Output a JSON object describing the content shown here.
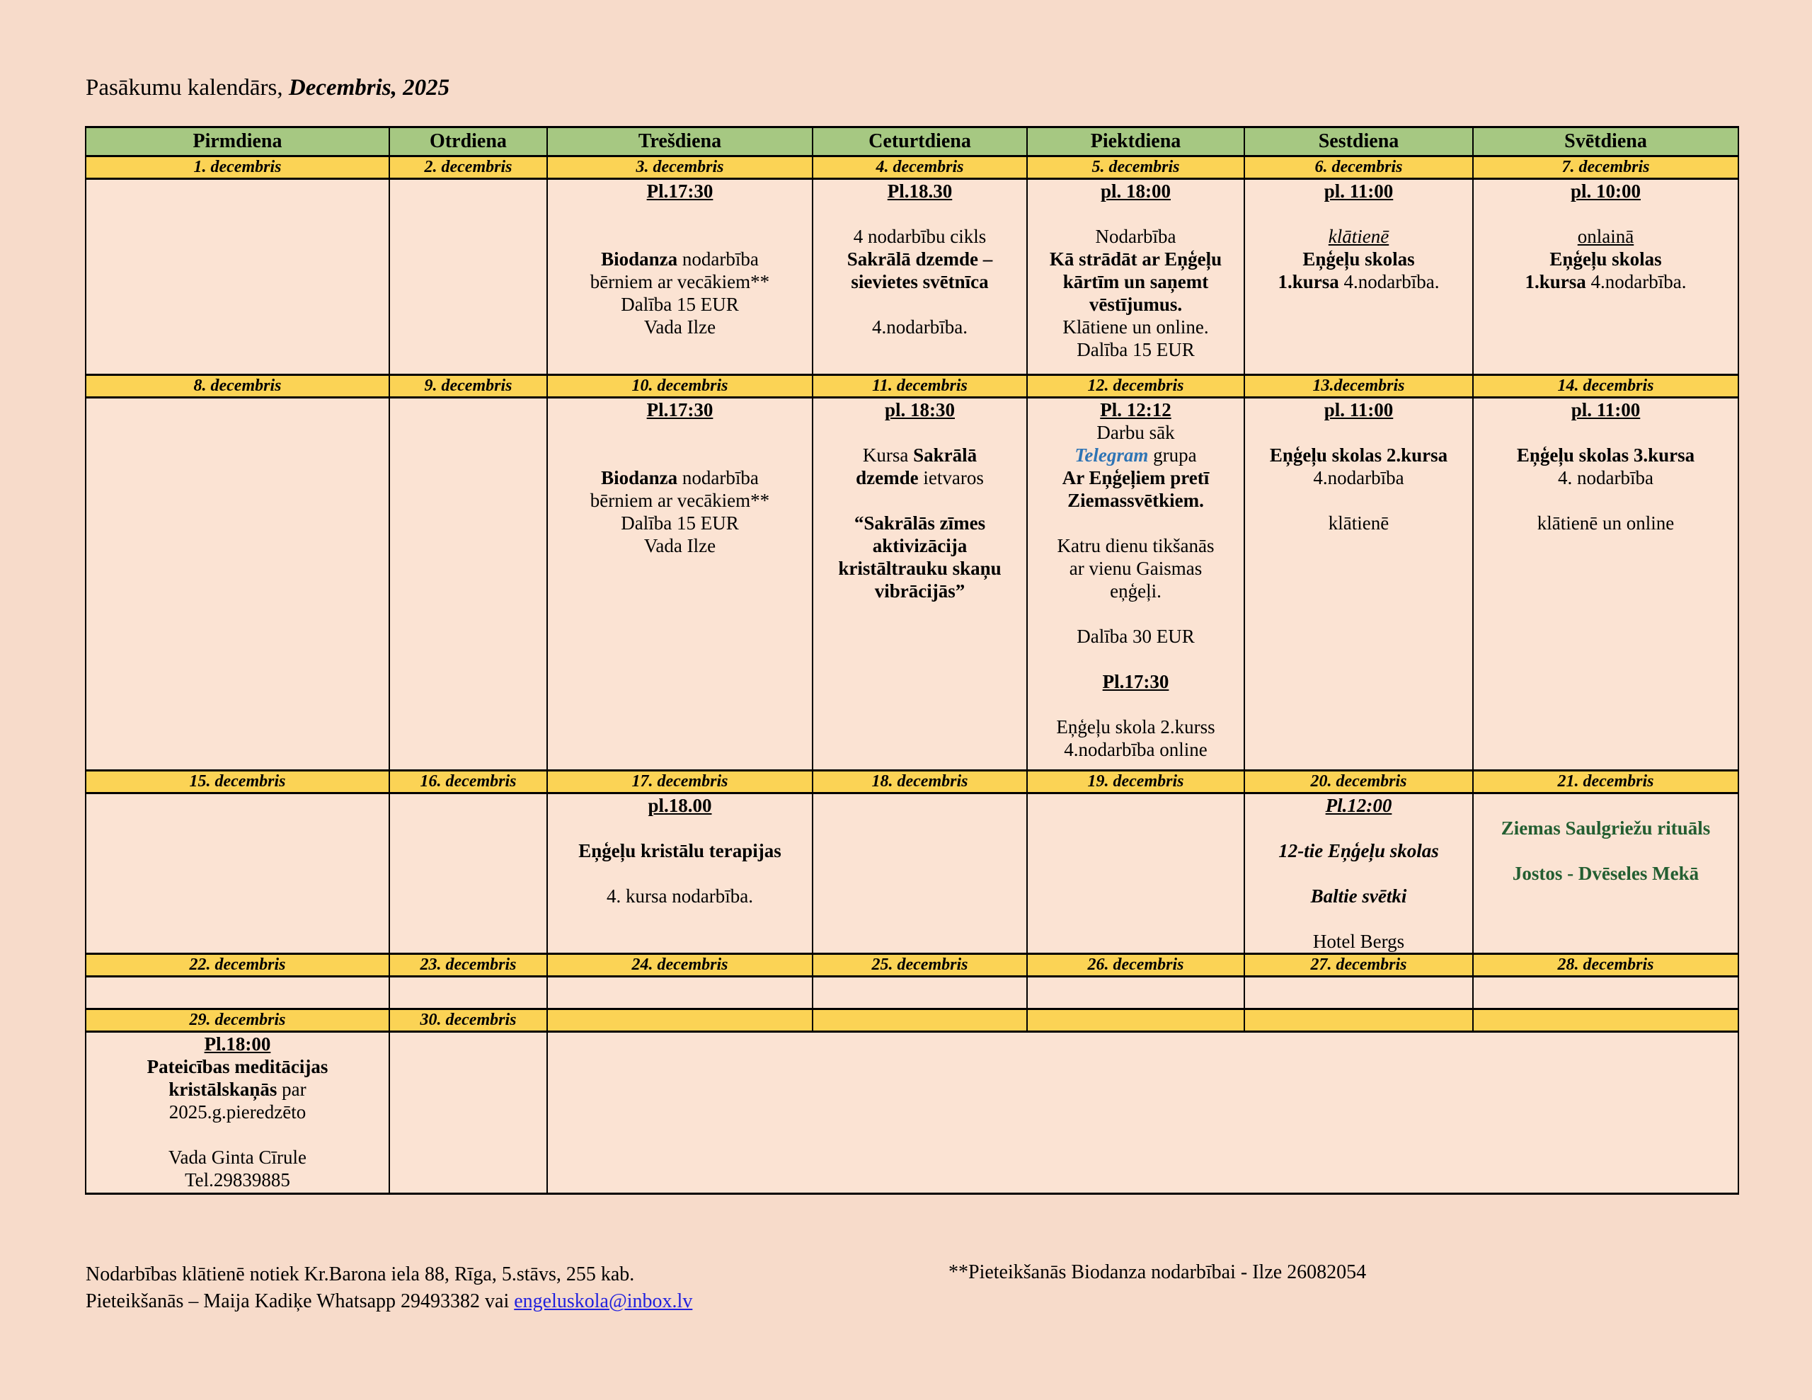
{
  "title": {
    "prefix": "Pasākumu kalendārs, ",
    "emphasis": "Decembris, 2025"
  },
  "colors": {
    "page_bg": "#f7dbca",
    "cell_bg": "#fbe3d3",
    "weekday_green": "#a6c882",
    "date_yellow": "#fbd355",
    "event_green_text": "#235e31",
    "telegram_blue": "#2e74b5",
    "link_blue": "#2121dd",
    "border": "#000000"
  },
  "weekdays": [
    "Pirmdiena",
    "Otrdiena",
    "Trešdiena",
    "Ceturtdiena",
    "Piektdiena",
    "Sestdiena",
    "Svētdiena"
  ],
  "weeks": [
    {
      "dates": [
        "1. decembris",
        "2. decembris",
        "3. decembris",
        "4. decembris",
        "5. decembris",
        "6. decembris",
        "7. decembris"
      ],
      "cells": [
        [],
        [],
        [
          [
            [
              "Pl.17:30",
              "bu"
            ]
          ],
          [],
          [],
          [
            [
              "Biodanza",
              "b"
            ],
            [
              " nodarbība",
              ""
            ]
          ],
          [
            [
              "bērniem ar vecākiem**",
              ""
            ]
          ],
          [
            [
              "Dalība 15 EUR",
              ""
            ]
          ],
          [
            [
              "Vada Ilze",
              ""
            ]
          ]
        ],
        [
          [
            [
              "Pl.18.30",
              "bu"
            ]
          ],
          [],
          [
            [
              "4 nodarbību cikls",
              ""
            ]
          ],
          [
            [
              "Sakrālā dzemde –",
              "b"
            ]
          ],
          [
            [
              "sievietes svētnīca",
              "b"
            ]
          ],
          [],
          [
            [
              "4.nodarbība.",
              ""
            ]
          ]
        ],
        [
          [
            [
              "pl. 18:00",
              "bu"
            ]
          ],
          [],
          [
            [
              "Nodarbība",
              ""
            ]
          ],
          [
            [
              "Kā strādāt ar Eņģeļu",
              "b"
            ]
          ],
          [
            [
              "kārtīm un saņemt",
              "b"
            ]
          ],
          [
            [
              "vēstījumus.",
              "b"
            ]
          ],
          [
            [
              "Klātiene un online.",
              ""
            ]
          ],
          [
            [
              "Dalība 15 EUR",
              ""
            ]
          ]
        ],
        [
          [
            [
              "pl. 11:00",
              "bu"
            ]
          ],
          [],
          [
            [
              "klātienē",
              "iu"
            ]
          ],
          [
            [
              "Eņģeļu skolas",
              "b"
            ]
          ],
          [
            [
              "1.kursa",
              "b"
            ],
            [
              " 4.nodarbība.",
              ""
            ]
          ]
        ],
        [
          [
            [
              "pl. 10:00",
              "bu"
            ]
          ],
          [],
          [
            [
              "onlainā",
              "u"
            ]
          ],
          [
            [
              "Eņģeļu skolas",
              "b"
            ]
          ],
          [
            [
              "1.kursa",
              "b"
            ],
            [
              " 4.nodarbība.",
              ""
            ]
          ]
        ]
      ]
    },
    {
      "dates": [
        "8. decembris",
        "9. decembris",
        "10. decembris",
        "11. decembris",
        "12. decembris",
        "13.decembris",
        "14. decembris"
      ],
      "cells": [
        [],
        [],
        [
          [
            [
              "Pl.17:30",
              "bu"
            ]
          ],
          [],
          [],
          [
            [
              "Biodanza",
              "b"
            ],
            [
              " nodarbība",
              ""
            ]
          ],
          [
            [
              "bērniem ar vecākiem**",
              ""
            ]
          ],
          [
            [
              "Dalība 15 EUR",
              ""
            ]
          ],
          [
            [
              "Vada Ilze",
              ""
            ]
          ]
        ],
        [
          [
            [
              "pl. 18:30",
              "bu"
            ]
          ],
          [],
          [
            [
              "Kursa ",
              ""
            ],
            [
              "Sakrālā",
              "b"
            ]
          ],
          [
            [
              "dzemde",
              "b"
            ],
            [
              " ietvaros",
              ""
            ]
          ],
          [],
          [
            [
              "“Sakrālās zīmes",
              "b"
            ]
          ],
          [
            [
              "aktivizācija",
              "b"
            ]
          ],
          [
            [
              "kristāltrauku skaņu",
              "b"
            ]
          ],
          [
            [
              "vibrācijās”",
              "b"
            ]
          ]
        ],
        [
          [
            [
              "Pl. 12:12",
              "bu"
            ]
          ],
          [
            [
              "Darbu sāk",
              ""
            ]
          ],
          [
            [
              "Telegram",
              "bit"
            ],
            [
              " grupa",
              ""
            ]
          ],
          [
            [
              "Ar Eņģeļiem pretī",
              "b"
            ]
          ],
          [
            [
              "Ziemassvētkiem.",
              "b"
            ]
          ],
          [],
          [
            [
              "Katru dienu tikšanās",
              ""
            ]
          ],
          [
            [
              "ar vienu Gaismas",
              ""
            ]
          ],
          [
            [
              "eņģeļi.",
              ""
            ]
          ],
          [],
          [
            [
              "Dalība 30 EUR",
              ""
            ]
          ],
          [],
          [
            [
              "Pl.17:30",
              "bu"
            ]
          ],
          [],
          [
            [
              "Eņģeļu skola 2.kurss",
              ""
            ]
          ],
          [
            [
              "4.nodarbība online",
              ""
            ]
          ]
        ],
        [
          [
            [
              "pl. 11:00",
              "bu"
            ]
          ],
          [],
          [
            [
              "Eņģeļu skolas 2.kursa",
              "b"
            ]
          ],
          [
            [
              "4.nodarbība",
              ""
            ]
          ],
          [],
          [
            [
              "klātienē",
              ""
            ]
          ]
        ],
        [
          [
            [
              "pl. 11:00",
              "bu"
            ]
          ],
          [],
          [
            [
              "Eņģeļu skolas 3.kursa",
              "b"
            ]
          ],
          [
            [
              "4. nodarbība",
              ""
            ]
          ],
          [],
          [
            [
              "klātienē un online",
              ""
            ]
          ]
        ]
      ]
    },
    {
      "dates": [
        "15. decembris",
        "16. decembris",
        "17. decembris",
        "18. decembris",
        "19. decembris",
        "20. decembris",
        "21. decembris"
      ],
      "cells": [
        [],
        [],
        [
          [
            [
              "pl.18.00",
              "bu"
            ]
          ],
          [],
          [
            [
              "Eņģeļu kristālu terapijas",
              "b"
            ]
          ],
          [],
          [
            [
              "4. kursa nodarbība.",
              ""
            ]
          ]
        ],
        [],
        [],
        [
          [
            [
              "Pl.12:00",
              "biu"
            ]
          ],
          [],
          [
            [
              "12-tie Eņģeļu skolas",
              "bi"
            ]
          ],
          [],
          [
            [
              "Baltie svētki",
              "bi"
            ]
          ],
          [],
          [
            [
              "Hotel Bergs",
              ""
            ]
          ]
        ],
        [
          [],
          [
            [
              "Ziemas Saulgriežu rituāls",
              "bg"
            ]
          ],
          [],
          [
            [
              "Jostos - Dvēseles Mekā",
              "bg"
            ]
          ]
        ]
      ]
    },
    {
      "dates": [
        "22. decembris",
        "23. decembris",
        "24. decembris",
        "25. decembris",
        "26. decembris",
        "27. decembris",
        "28. decembris"
      ],
      "cells": [
        [],
        [],
        [],
        [],
        [],
        [],
        []
      ]
    },
    {
      "dates": [
        "29. decembris",
        "30. decembris",
        "",
        "",
        "",
        "",
        ""
      ],
      "merged_tail": true,
      "cells": [
        [
          [
            [
              "Pl.18:00",
              "bu"
            ]
          ],
          [
            [
              "Pateicības meditācijas",
              "b"
            ]
          ],
          [
            [
              "kristālskaņās",
              "b"
            ],
            [
              " par",
              ""
            ]
          ],
          [
            [
              "2025.g.pieredzēto",
              ""
            ]
          ],
          [],
          [
            [
              "Vada Ginta Cīrule",
              ""
            ]
          ],
          [
            [
              "Tel.29839885",
              ""
            ]
          ]
        ],
        []
      ]
    }
  ],
  "footer": {
    "line1": "Nodarbības klātienē notiek Kr.Barona iela 88, Rīga, 5.stāvs, 255 kab.",
    "line2_prefix": "Pieteikšanās – Maija Kadiķe Whatsapp 29493382 vai ",
    "email": "engeluskola@inbox.lv",
    "right_note": "**Pieteikšanās Biodanza nodarbībai - Ilze 26082054"
  }
}
